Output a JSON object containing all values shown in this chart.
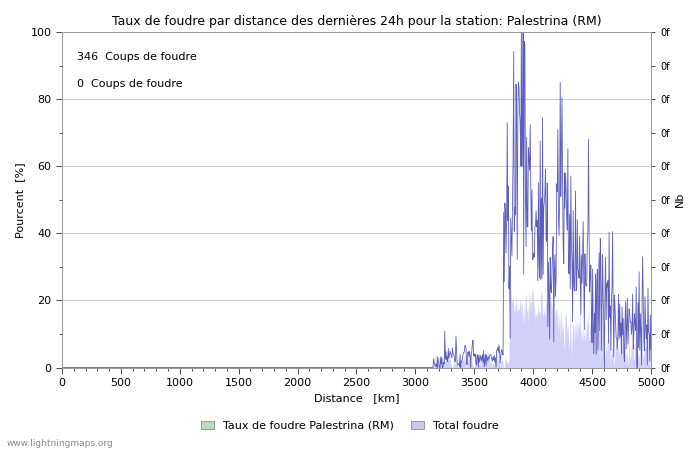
{
  "title": "Taux de foudre par distance des dernières 24h pour la station: Palestrina (RM)",
  "xlabel": "Distance   [km]",
  "ylabel_left": "Pourcent  [%]",
  "ylabel_right": "Nb",
  "annotation_line1": "346  Coups de foudre",
  "annotation_line2": "0  Coups de foudre",
  "xlim": [
    0,
    5000
  ],
  "ylim": [
    0,
    100
  ],
  "xticks": [
    0,
    500,
    1000,
    1500,
    2000,
    2500,
    3000,
    3500,
    4000,
    4500,
    5000
  ],
  "yticks_left": [
    0,
    20,
    40,
    60,
    80,
    100
  ],
  "legend_label1": "Taux de foudre Palestrina (RM)",
  "legend_label2": "Total foudre",
  "legend_color1": "#b8ddb8",
  "legend_color2": "#c8c8f0",
  "line_color": "#5555bb",
  "fill_total_color": "#d0d0f8",
  "fill_taux_color": "#b8ddb8",
  "bg_color": "#ffffff",
  "grid_color": "#cccccc",
  "watermark": "www.lightningmaps.org",
  "title_fontsize": 9,
  "axis_fontsize": 8,
  "label_fontsize": 8,
  "annot_fontsize": 8
}
